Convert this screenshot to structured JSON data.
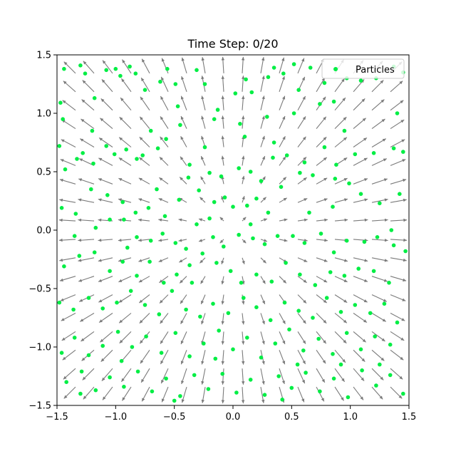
{
  "chart_data": {
    "type": "scatter",
    "title": "Time Step: 0/20",
    "xlabel": "",
    "ylabel": "",
    "xlim": [
      -1.5,
      1.5
    ],
    "ylim": [
      -1.5,
      1.5
    ],
    "x_ticks": [
      -1.5,
      -1.0,
      -0.5,
      0.0,
      0.5,
      1.0,
      1.5
    ],
    "y_ticks": [
      -1.5,
      -1.0,
      -0.5,
      0.0,
      0.5,
      1.0,
      1.5
    ],
    "x_tick_labels": [
      "−1.5",
      "−1.0",
      "−0.5",
      "0.0",
      "0.5",
      "1.0",
      "1.5"
    ],
    "y_tick_labels": [
      "−1.5",
      "−1.0",
      "−0.5",
      "0.0",
      "0.5",
      "1.0",
      "1.5"
    ],
    "grid": false,
    "legend": {
      "position": "upper right",
      "entries": [
        "Particles"
      ]
    },
    "colors": {
      "particles": "#00ee44",
      "quiver": "#7a7a7a"
    },
    "quiver_field": {
      "description_of_field": "radial outward",
      "x_range": [
        -1.5,
        1.5
      ],
      "y_range": [
        -1.5,
        1.5
      ],
      "count": 20
    },
    "series": [
      {
        "name": "Particles",
        "points": [
          [
            -1.47,
            1.09
          ],
          [
            -1.44,
            1.38
          ],
          [
            -1.3,
            1.41
          ],
          [
            -1.26,
            1.34
          ],
          [
            -1.18,
            1.13
          ],
          [
            -1.08,
            1.37
          ],
          [
            -1.0,
            1.38
          ],
          [
            -0.96,
            1.32
          ],
          [
            -0.88,
            1.4
          ],
          [
            -0.83,
            1.34
          ],
          [
            -0.75,
            1.2
          ],
          [
            -0.62,
            1.27
          ],
          [
            -0.56,
            1.38
          ],
          [
            -0.49,
            1.25
          ],
          [
            -0.47,
            1.06
          ],
          [
            -0.31,
            1.37
          ],
          [
            -0.24,
            1.25
          ],
          [
            -0.16,
            0.95
          ],
          [
            -0.13,
            1.03
          ],
          [
            0.02,
            1.17
          ],
          [
            0.11,
            1.29
          ],
          [
            0.16,
            1.18
          ],
          [
            0.3,
            1.31
          ],
          [
            0.35,
            1.39
          ],
          [
            0.43,
            1.34
          ],
          [
            0.52,
            1.42
          ],
          [
            0.56,
            1.2
          ],
          [
            0.66,
            1.39
          ],
          [
            0.78,
            1.26
          ],
          [
            0.88,
            1.38
          ],
          [
            0.97,
            1.3
          ],
          [
            1.09,
            1.28
          ],
          [
            1.22,
            1.3
          ],
          [
            1.37,
            1.4
          ],
          [
            1.45,
            1.35
          ],
          [
            0.74,
            1.08
          ],
          [
            0.86,
            1.1
          ],
          [
            0.52,
            1.0
          ],
          [
            0.29,
            0.97
          ],
          [
            0.06,
            0.91
          ],
          [
            -1.48,
            0.72
          ],
          [
            -1.43,
            0.52
          ],
          [
            -1.33,
            0.61
          ],
          [
            -1.28,
            0.66
          ],
          [
            -1.19,
            0.57
          ],
          [
            -1.08,
            0.72
          ],
          [
            -1.01,
            0.65
          ],
          [
            -0.91,
            0.69
          ],
          [
            -0.82,
            0.61
          ],
          [
            -0.77,
            0.64
          ],
          [
            -0.64,
            0.7
          ],
          [
            -0.57,
            0.78
          ],
          [
            -0.37,
            0.56
          ],
          [
            -0.24,
            0.71
          ],
          [
            -0.2,
            0.49
          ],
          [
            -0.1,
            0.46
          ],
          [
            0.05,
            0.53
          ],
          [
            0.15,
            0.5
          ],
          [
            0.24,
            0.42
          ],
          [
            0.34,
            0.62
          ],
          [
            0.46,
            0.64
          ],
          [
            0.61,
            0.58
          ],
          [
            0.78,
            0.71
          ],
          [
            0.88,
            0.56
          ],
          [
            1.04,
            0.65
          ],
          [
            1.2,
            0.66
          ],
          [
            1.37,
            0.7
          ],
          [
            1.45,
            0.67
          ],
          [
            1.42,
            0.31
          ],
          [
            1.25,
            0.23
          ],
          [
            1.09,
            0.31
          ],
          [
            0.99,
            0.4
          ],
          [
            0.87,
            0.44
          ],
          [
            0.68,
            0.47
          ],
          [
            0.57,
            0.49
          ],
          [
            0.41,
            0.37
          ],
          [
            0.2,
            0.27
          ],
          [
            0.12,
            0.21
          ],
          [
            0.0,
            0.2
          ],
          [
            -0.07,
            0.28
          ],
          [
            -0.16,
            0.24
          ],
          [
            -0.29,
            0.34
          ],
          [
            -0.38,
            0.45
          ],
          [
            -0.46,
            0.26
          ],
          [
            -0.58,
            0.12
          ],
          [
            -0.72,
            0.19
          ],
          [
            -0.83,
            0.15
          ],
          [
            -0.94,
            0.24
          ],
          [
            -1.07,
            0.3
          ],
          [
            -1.21,
            0.35
          ],
          [
            -1.34,
            0.14
          ],
          [
            -1.46,
            0.19
          ],
          [
            -1.17,
            0.02
          ],
          [
            -1.05,
            0.09
          ],
          [
            -0.93,
            0.09
          ],
          [
            -0.82,
            -0.06
          ],
          [
            -0.7,
            -0.09
          ],
          [
            -0.6,
            -0.03
          ],
          [
            -0.49,
            -0.11
          ],
          [
            -0.4,
            -0.16
          ],
          [
            -0.31,
            0.05
          ],
          [
            -0.17,
            -0.06
          ],
          [
            -0.08,
            -0.14
          ],
          [
            0.05,
            -0.04
          ],
          [
            0.17,
            -0.07
          ],
          [
            0.27,
            -0.12
          ],
          [
            0.38,
            -0.05
          ],
          [
            0.51,
            -0.05
          ],
          [
            0.61,
            -0.11
          ],
          [
            0.75,
            -0.03
          ],
          [
            0.86,
            -0.19
          ],
          [
            0.97,
            -0.09
          ],
          [
            1.12,
            -0.1
          ],
          [
            1.23,
            -0.06
          ],
          [
            1.37,
            -0.13
          ],
          [
            1.47,
            -0.18
          ],
          [
            1.33,
            -0.45
          ],
          [
            1.2,
            -0.35
          ],
          [
            1.07,
            -0.33
          ],
          [
            0.95,
            -0.39
          ],
          [
            0.83,
            -0.36
          ],
          [
            0.7,
            -0.47
          ],
          [
            0.57,
            -0.38
          ],
          [
            0.45,
            -0.28
          ],
          [
            0.33,
            -0.44
          ],
          [
            0.2,
            -0.38
          ],
          [
            0.07,
            -0.45
          ],
          [
            -0.02,
            -0.35
          ],
          [
            -0.14,
            -0.28
          ],
          [
            -0.26,
            -0.2
          ],
          [
            -0.37,
            -0.3
          ],
          [
            -0.48,
            -0.38
          ],
          [
            -0.59,
            -0.45
          ],
          [
            -0.71,
            -0.27
          ],
          [
            -0.82,
            -0.39
          ],
          [
            -0.94,
            -0.27
          ],
          [
            -1.05,
            -0.35
          ],
          [
            -1.18,
            -0.19
          ],
          [
            -1.31,
            -0.22
          ],
          [
            -1.44,
            -0.31
          ],
          [
            -1.48,
            -0.62
          ],
          [
            -1.36,
            -0.68
          ],
          [
            -1.23,
            -0.58
          ],
          [
            -1.11,
            -0.67
          ],
          [
            -0.99,
            -0.62
          ],
          [
            -0.87,
            -0.52
          ],
          [
            -0.75,
            -0.64
          ],
          [
            -0.63,
            -0.72
          ],
          [
            -0.52,
            -0.52
          ],
          [
            -0.4,
            -0.68
          ],
          [
            -0.28,
            -0.74
          ],
          [
            -0.17,
            -0.63
          ],
          [
            -0.04,
            -0.71
          ],
          [
            0.09,
            -0.58
          ],
          [
            0.2,
            -0.66
          ],
          [
            0.32,
            -0.77
          ],
          [
            0.44,
            -0.62
          ],
          [
            0.56,
            -0.69
          ],
          [
            0.68,
            -0.75
          ],
          [
            0.8,
            -0.58
          ],
          [
            0.92,
            -0.7
          ],
          [
            1.04,
            -0.64
          ],
          [
            1.17,
            -0.71
          ],
          [
            1.29,
            -0.63
          ],
          [
            1.4,
            -0.79
          ],
          [
            1.34,
            -0.98
          ],
          [
            1.21,
            -0.91
          ],
          [
            1.09,
            -1.02
          ],
          [
            0.97,
            -0.88
          ],
          [
            0.85,
            -1.06
          ],
          [
            0.73,
            -0.93
          ],
          [
            0.6,
            -1.03
          ],
          [
            0.48,
            -0.85
          ],
          [
            0.36,
            -0.97
          ],
          [
            0.24,
            -1.09
          ],
          [
            0.12,
            -0.92
          ],
          [
            0.0,
            -1.02
          ],
          [
            -0.12,
            -0.86
          ],
          [
            -0.25,
            -0.97
          ],
          [
            -0.37,
            -1.08
          ],
          [
            -0.49,
            -0.88
          ],
          [
            -0.61,
            -1.05
          ],
          [
            -0.74,
            -0.91
          ],
          [
            -0.86,
            -1.0
          ],
          [
            -0.98,
            -0.87
          ],
          [
            -1.11,
            -0.99
          ],
          [
            -1.23,
            -1.07
          ],
          [
            -1.35,
            -0.92
          ],
          [
            -1.46,
            -1.05
          ],
          [
            -1.42,
            -1.3
          ],
          [
            -1.29,
            -1.21
          ],
          [
            -1.17,
            -1.37
          ],
          [
            -1.05,
            -1.26
          ],
          [
            -0.93,
            -1.34
          ],
          [
            -0.81,
            -1.21
          ],
          [
            -0.69,
            -1.38
          ],
          [
            -0.57,
            -1.27
          ],
          [
            -0.45,
            -1.42
          ],
          [
            -0.33,
            -1.24
          ],
          [
            -0.21,
            -1.36
          ],
          [
            -0.09,
            -1.23
          ],
          [
            0.03,
            -1.39
          ],
          [
            0.15,
            -1.28
          ],
          [
            0.27,
            -1.41
          ],
          [
            0.39,
            -1.25
          ],
          [
            0.5,
            -1.35
          ],
          [
            0.62,
            -1.22
          ],
          [
            0.74,
            -1.38
          ],
          [
            0.86,
            -1.27
          ],
          [
            0.98,
            -1.43
          ],
          [
            1.1,
            -1.2
          ],
          [
            1.22,
            -1.33
          ],
          [
            1.34,
            -1.24
          ],
          [
            1.45,
            -1.4
          ],
          [
            0.42,
            -1.45
          ],
          [
            -0.5,
            -1.46
          ],
          [
            0.92,
            -1.15
          ],
          [
            -0.95,
            -1.12
          ],
          [
            0.15,
            0.05
          ],
          [
            -0.2,
            0.1
          ],
          [
            0.3,
            0.15
          ],
          [
            -0.35,
            -0.45
          ],
          [
            0.65,
            0.15
          ],
          [
            -0.65,
            0.35
          ],
          [
            0.85,
            0.2
          ],
          [
            -0.9,
            -0.15
          ],
          [
            1.35,
            0.0
          ],
          [
            -1.35,
            -0.05
          ],
          [
            0.1,
            0.8
          ],
          [
            -0.45,
            0.9
          ],
          [
            0.95,
            0.85
          ],
          [
            -1.2,
            0.85
          ],
          [
            1.4,
            1.0
          ],
          [
            -1.45,
            0.95
          ],
          [
            0.35,
            0.75
          ],
          [
            -0.7,
            0.85
          ],
          [
            0.55,
            -1.15
          ],
          [
            -0.15,
            -1.1
          ],
          [
            1.25,
            -1.15
          ],
          [
            -1.3,
            -1.4
          ]
        ]
      }
    ]
  }
}
